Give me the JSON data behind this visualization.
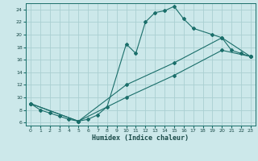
{
  "xlabel": "Humidex (Indice chaleur)",
  "bg_color": "#cce8ea",
  "grid_color": "#aacfd2",
  "line_color": "#1a6e6a",
  "xlim": [
    -0.5,
    23.5
  ],
  "ylim": [
    5.5,
    25.0
  ],
  "xticks": [
    0,
    1,
    2,
    3,
    4,
    5,
    6,
    7,
    8,
    9,
    10,
    11,
    12,
    13,
    14,
    15,
    16,
    17,
    18,
    19,
    20,
    21,
    22,
    23
  ],
  "yticks": [
    6,
    8,
    10,
    12,
    14,
    16,
    18,
    20,
    22,
    24
  ],
  "series1_x": [
    0,
    1,
    2,
    3,
    4,
    5,
    6,
    7,
    8,
    10,
    11,
    12,
    13,
    14,
    15,
    16,
    17,
    19,
    20,
    21,
    22,
    23
  ],
  "series1_y": [
    9.0,
    8.0,
    7.5,
    7.0,
    6.5,
    6.2,
    6.5,
    7.2,
    8.5,
    18.5,
    17.0,
    22.0,
    23.5,
    23.8,
    24.5,
    22.5,
    21.0,
    20.0,
    19.5,
    17.5,
    17.0,
    16.5
  ],
  "series2_x": [
    0,
    5,
    10,
    15,
    20,
    23
  ],
  "series2_y": [
    9.0,
    6.2,
    12.0,
    15.5,
    19.5,
    16.5
  ],
  "series3_x": [
    0,
    5,
    10,
    15,
    20,
    23
  ],
  "series3_y": [
    9.0,
    6.2,
    10.0,
    13.5,
    17.5,
    16.5
  ]
}
